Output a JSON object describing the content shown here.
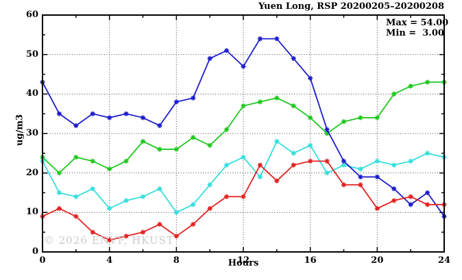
{
  "title": "Yuen Long, RSP 20200205–20200208",
  "legend": {
    "max_label": "Max = 54.00",
    "min_label": "Min =  3.00"
  },
  "watermark": "© 2026 ENVF, HKUST",
  "chart_data": {
    "type": "line",
    "title": "Yuen Long, RSP 20200205–20200208",
    "xlabel": "Hours",
    "ylabel": "ug/m3",
    "xlim": [
      0,
      24
    ],
    "ylim": [
      0,
      60
    ],
    "x_major_ticks": [
      0,
      4,
      8,
      12,
      16,
      20,
      24
    ],
    "x_minor_step": 2,
    "y_major_ticks": [
      0,
      10,
      20,
      30,
      40,
      50,
      60
    ],
    "y_minor_step": 5,
    "grid": "dotted black gridlines at x = 4,8,12,16,20 and y = 10,20,30,40,50; ticks mirrored on all four borders",
    "legend_position": "top-right inside plot",
    "marker": "asterisk-star",
    "x": [
      0,
      1,
      2,
      3,
      4,
      5,
      6,
      7,
      8,
      9,
      10,
      11,
      12,
      13,
      14,
      15,
      16,
      17,
      18,
      19,
      20,
      21,
      22,
      23,
      24
    ],
    "series": [
      {
        "name": "series-green",
        "color": "#1fc81f",
        "values": [
          24,
          20,
          24,
          23,
          21,
          23,
          28,
          26,
          26,
          29,
          27,
          31,
          37,
          38,
          39,
          37,
          34,
          30,
          33,
          34,
          34,
          40,
          42,
          43,
          43
        ]
      },
      {
        "name": "series-cyan",
        "color": "#35dede",
        "values": [
          23,
          15,
          14,
          16,
          11,
          13,
          14,
          16,
          10,
          12,
          17,
          22,
          24,
          19,
          28,
          25,
          27,
          20,
          22,
          21,
          23,
          22,
          23,
          25,
          24
        ]
      },
      {
        "name": "series-blue",
        "color": "#1c1ccc",
        "values": [
          43,
          35,
          32,
          35,
          34,
          35,
          34,
          32,
          38,
          39,
          49,
          51,
          47,
          54,
          54,
          49,
          44,
          31,
          23,
          19,
          19,
          16,
          12,
          15,
          9
        ]
      },
      {
        "name": "series-red",
        "color": "#e42020",
        "values": [
          9,
          11,
          9,
          5,
          3,
          4,
          5,
          7,
          4,
          7,
          11,
          14,
          14,
          22,
          18,
          22,
          23,
          23,
          17,
          17,
          11,
          13,
          14,
          12,
          12
        ]
      }
    ],
    "stats": {
      "max": 54.0,
      "min": 3.0
    }
  }
}
